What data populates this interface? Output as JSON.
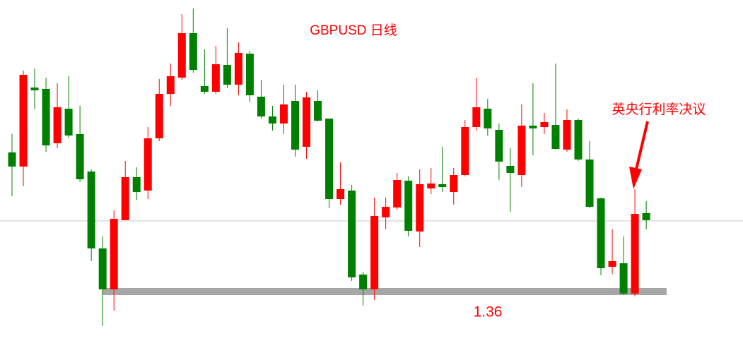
{
  "chart_data": {
    "type": "candlestick",
    "title": "GBPUSD  日线",
    "annotation": "英央行利率决议",
    "up_color": "#ff0000",
    "down_color": "#008000",
    "ylim": [
      1.342,
      1.4426
    ],
    "reference_line": 1.38,
    "support": {
      "value": 1.36,
      "label": "1.36"
    },
    "open": [
      1.3994,
      1.3954,
      1.4178,
      1.4174,
      1.402,
      1.4118,
      1.4046,
      1.394,
      1.3722,
      1.3606,
      1.3802,
      1.3924,
      1.3886,
      1.4034,
      1.416,
      1.4206,
      1.4332,
      1.4182,
      1.4166,
      1.4242,
      1.4186,
      1.4274,
      1.4152,
      1.4096,
      1.4076,
      1.414,
      1.401,
      1.414,
      1.409,
      1.3862,
      1.3886,
      1.3648,
      1.3606,
      1.381,
      1.3838,
      1.3914,
      1.377,
      1.3892,
      1.3904,
      1.3882,
      1.393,
      1.4066,
      1.4118,
      1.4058,
      1.3956,
      1.393,
      1.407,
      1.4066,
      1.4072,
      1.4002,
      1.4086,
      1.3974,
      1.3864,
      1.367,
      1.368,
      1.3594,
      1.3822
    ],
    "high": [
      1.4046,
      1.4226,
      1.4232,
      1.4206,
      1.419,
      1.421,
      1.4126,
      1.3946,
      1.3756,
      1.383,
      1.397,
      1.3952,
      1.4066,
      1.4202,
      1.4246,
      1.4386,
      1.4402,
      1.4286,
      1.4296,
      1.4346,
      1.4306,
      1.4282,
      1.42,
      1.4126,
      1.4186,
      1.4186,
      1.4166,
      1.417,
      1.409,
      1.3966,
      1.3902,
      1.3656,
      1.3866,
      1.3866,
      1.3936,
      1.3926,
      1.3946,
      1.395,
      1.401,
      1.395,
      1.4086,
      1.4206,
      1.4146,
      1.4076,
      1.4006,
      1.413,
      1.419,
      1.4106,
      1.4246,
      1.4116,
      1.409,
      1.4026,
      1.3866,
      1.3776,
      1.3756,
      1.389,
      1.3856
    ],
    "low": [
      1.387,
      1.3898,
      1.4116,
      1.3996,
      1.4006,
      1.4036,
      1.391,
      1.3686,
      1.3502,
      1.3546,
      1.3802,
      1.386,
      1.3862,
      1.4026,
      1.4126,
      1.42,
      1.422,
      1.416,
      1.416,
      1.4176,
      1.4156,
      1.4136,
      1.409,
      1.4056,
      1.4046,
      1.3982,
      1.3976,
      1.4082,
      1.3836,
      1.3846,
      1.363,
      1.356,
      1.3576,
      1.3776,
      1.3832,
      1.3756,
      1.3726,
      1.3876,
      1.3882,
      1.3846,
      1.3926,
      1.4056,
      1.4042,
      1.3916,
      1.3826,
      1.3896,
      1.3986,
      1.4046,
      1.4002,
      1.3996,
      1.397,
      1.3836,
      1.3646,
      1.365,
      1.359,
      1.3586,
      1.3776
    ],
    "close": [
      1.3954,
      1.4214,
      1.417,
      1.4014,
      1.4122,
      1.4042,
      1.3918,
      1.3722,
      1.3606,
      1.3806,
      1.3924,
      1.3882,
      1.4034,
      1.416,
      1.421,
      1.4332,
      1.4228,
      1.4166,
      1.4244,
      1.4186,
      1.4276,
      1.4156,
      1.4096,
      1.4076,
      1.413,
      1.4002,
      1.415,
      1.4084,
      1.3862,
      1.389,
      1.364,
      1.3606,
      1.3814,
      1.384,
      1.3916,
      1.3772,
      1.3904,
      1.3906,
      1.3896,
      1.393,
      1.4066,
      1.4122,
      1.4062,
      1.3968,
      1.3936,
      1.407,
      1.4062,
      1.408,
      1.4004,
      1.4086,
      1.3974,
      1.384,
      1.3666,
      1.3686,
      1.3594,
      1.382,
      1.3802
    ]
  }
}
